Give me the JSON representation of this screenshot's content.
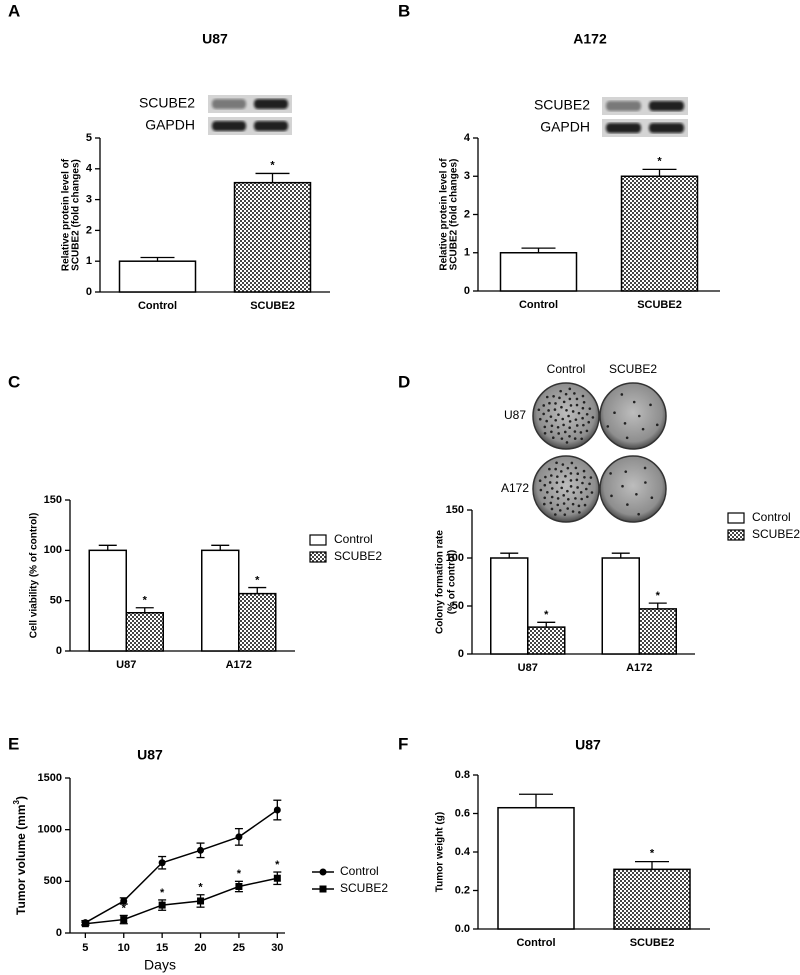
{
  "chart_data": [
    {
      "panel": "A",
      "type": "bar",
      "title": "U87",
      "blot_labels": [
        "SCUBE2",
        "GAPDH"
      ],
      "ylabel": [
        "Relative protein level of",
        "SCUBE2 (fold changes)"
      ],
      "categories": [
        "Control",
        "SCUBE2"
      ],
      "values": [
        1,
        3.55
      ],
      "errors": [
        0.12,
        0.3
      ],
      "significance": [
        null,
        "*"
      ],
      "fills": [
        "white",
        "pattern"
      ],
      "ylim": [
        0,
        5
      ],
      "yticks": [
        0,
        1,
        2,
        3,
        4,
        5
      ]
    },
    {
      "panel": "B",
      "type": "bar",
      "title": "A172",
      "blot_labels": [
        "SCUBE2",
        "GAPDH"
      ],
      "ylabel": [
        "Relative protein level of",
        "SCUBE2 (fold changes)"
      ],
      "categories": [
        "Control",
        "SCUBE2"
      ],
      "values": [
        1,
        3
      ],
      "errors": [
        0.12,
        0.18
      ],
      "significance": [
        null,
        "*"
      ],
      "fills": [
        "white",
        "pattern"
      ],
      "ylim": [
        0,
        4
      ],
      "yticks": [
        0,
        1,
        2,
        3,
        4
      ]
    },
    {
      "panel": "C",
      "type": "grouped-bar",
      "ylabel": [
        "Cell viability (% of control)"
      ],
      "categories": [
        "U87",
        "A172"
      ],
      "series": [
        {
          "name": "Control",
          "fill": "white",
          "values": [
            100,
            100
          ],
          "errors": [
            5,
            5
          ]
        },
        {
          "name": "SCUBE2",
          "fill": "pattern",
          "values": [
            38,
            57
          ],
          "errors": [
            5,
            6
          ],
          "significance": [
            "*",
            "*"
          ]
        }
      ],
      "ylim": [
        0,
        150
      ],
      "yticks": [
        0,
        50,
        100,
        150
      ],
      "legend": "right"
    },
    {
      "panel": "D",
      "type": "grouped-bar",
      "plate_columns": [
        "Control",
        "SCUBE2"
      ],
      "plate_rows": [
        "U87",
        "A172"
      ],
      "ylabel": [
        "Colony formation rate",
        "(% of control)"
      ],
      "categories": [
        "U87",
        "A172"
      ],
      "series": [
        {
          "name": "Control",
          "fill": "white",
          "values": [
            100,
            100
          ],
          "errors": [
            5,
            5
          ]
        },
        {
          "name": "SCUBE2",
          "fill": "pattern",
          "values": [
            28,
            47
          ],
          "errors": [
            5,
            6
          ],
          "significance": [
            "*",
            "*"
          ]
        }
      ],
      "ylim": [
        0,
        150
      ],
      "yticks": [
        0,
        50,
        100,
        150
      ],
      "legend": "right"
    },
    {
      "panel": "E",
      "type": "line",
      "title": "U87",
      "xlabel": "Days",
      "ylabel": "Tumor volume (mm",
      "ylabel_superscript": "3",
      "ylabel_end": ")",
      "x": [
        5,
        10,
        15,
        20,
        25,
        30
      ],
      "xlim": [
        3,
        31
      ],
      "xticks": [
        5,
        10,
        15,
        20,
        25,
        30
      ],
      "series": [
        {
          "name": "Control",
          "color": "#000000",
          "marker": "circle",
          "values": [
            100,
            310,
            680,
            800,
            930,
            1190
          ],
          "errors": [
            20,
            30,
            60,
            70,
            80,
            95
          ]
        },
        {
          "name": "SCUBE2",
          "color": "#000000",
          "marker": "square",
          "values": [
            90,
            130,
            270,
            310,
            450,
            530
          ],
          "errors": [
            15,
            40,
            50,
            60,
            50,
            60
          ],
          "significance": [
            null,
            "*",
            "*",
            "*",
            "*",
            "*"
          ]
        }
      ],
      "ylim": [
        0,
        1500
      ],
      "yticks": [
        0,
        500,
        1000,
        1500
      ],
      "legend": "right"
    },
    {
      "panel": "F",
      "type": "bar",
      "title": "U87",
      "ylabel": [
        "Tumor weight (g)"
      ],
      "categories": [
        "Control",
        "SCUBE2"
      ],
      "values": [
        0.63,
        0.31
      ],
      "errors": [
        0.07,
        0.04
      ],
      "significance": [
        null,
        "*"
      ],
      "fills": [
        "white",
        "pattern"
      ],
      "ylim": [
        0,
        0.8
      ],
      "yticks": [
        {
          "value": 0,
          "label": "0.0"
        },
        0.2,
        0.4,
        0.6,
        0.8
      ]
    }
  ]
}
